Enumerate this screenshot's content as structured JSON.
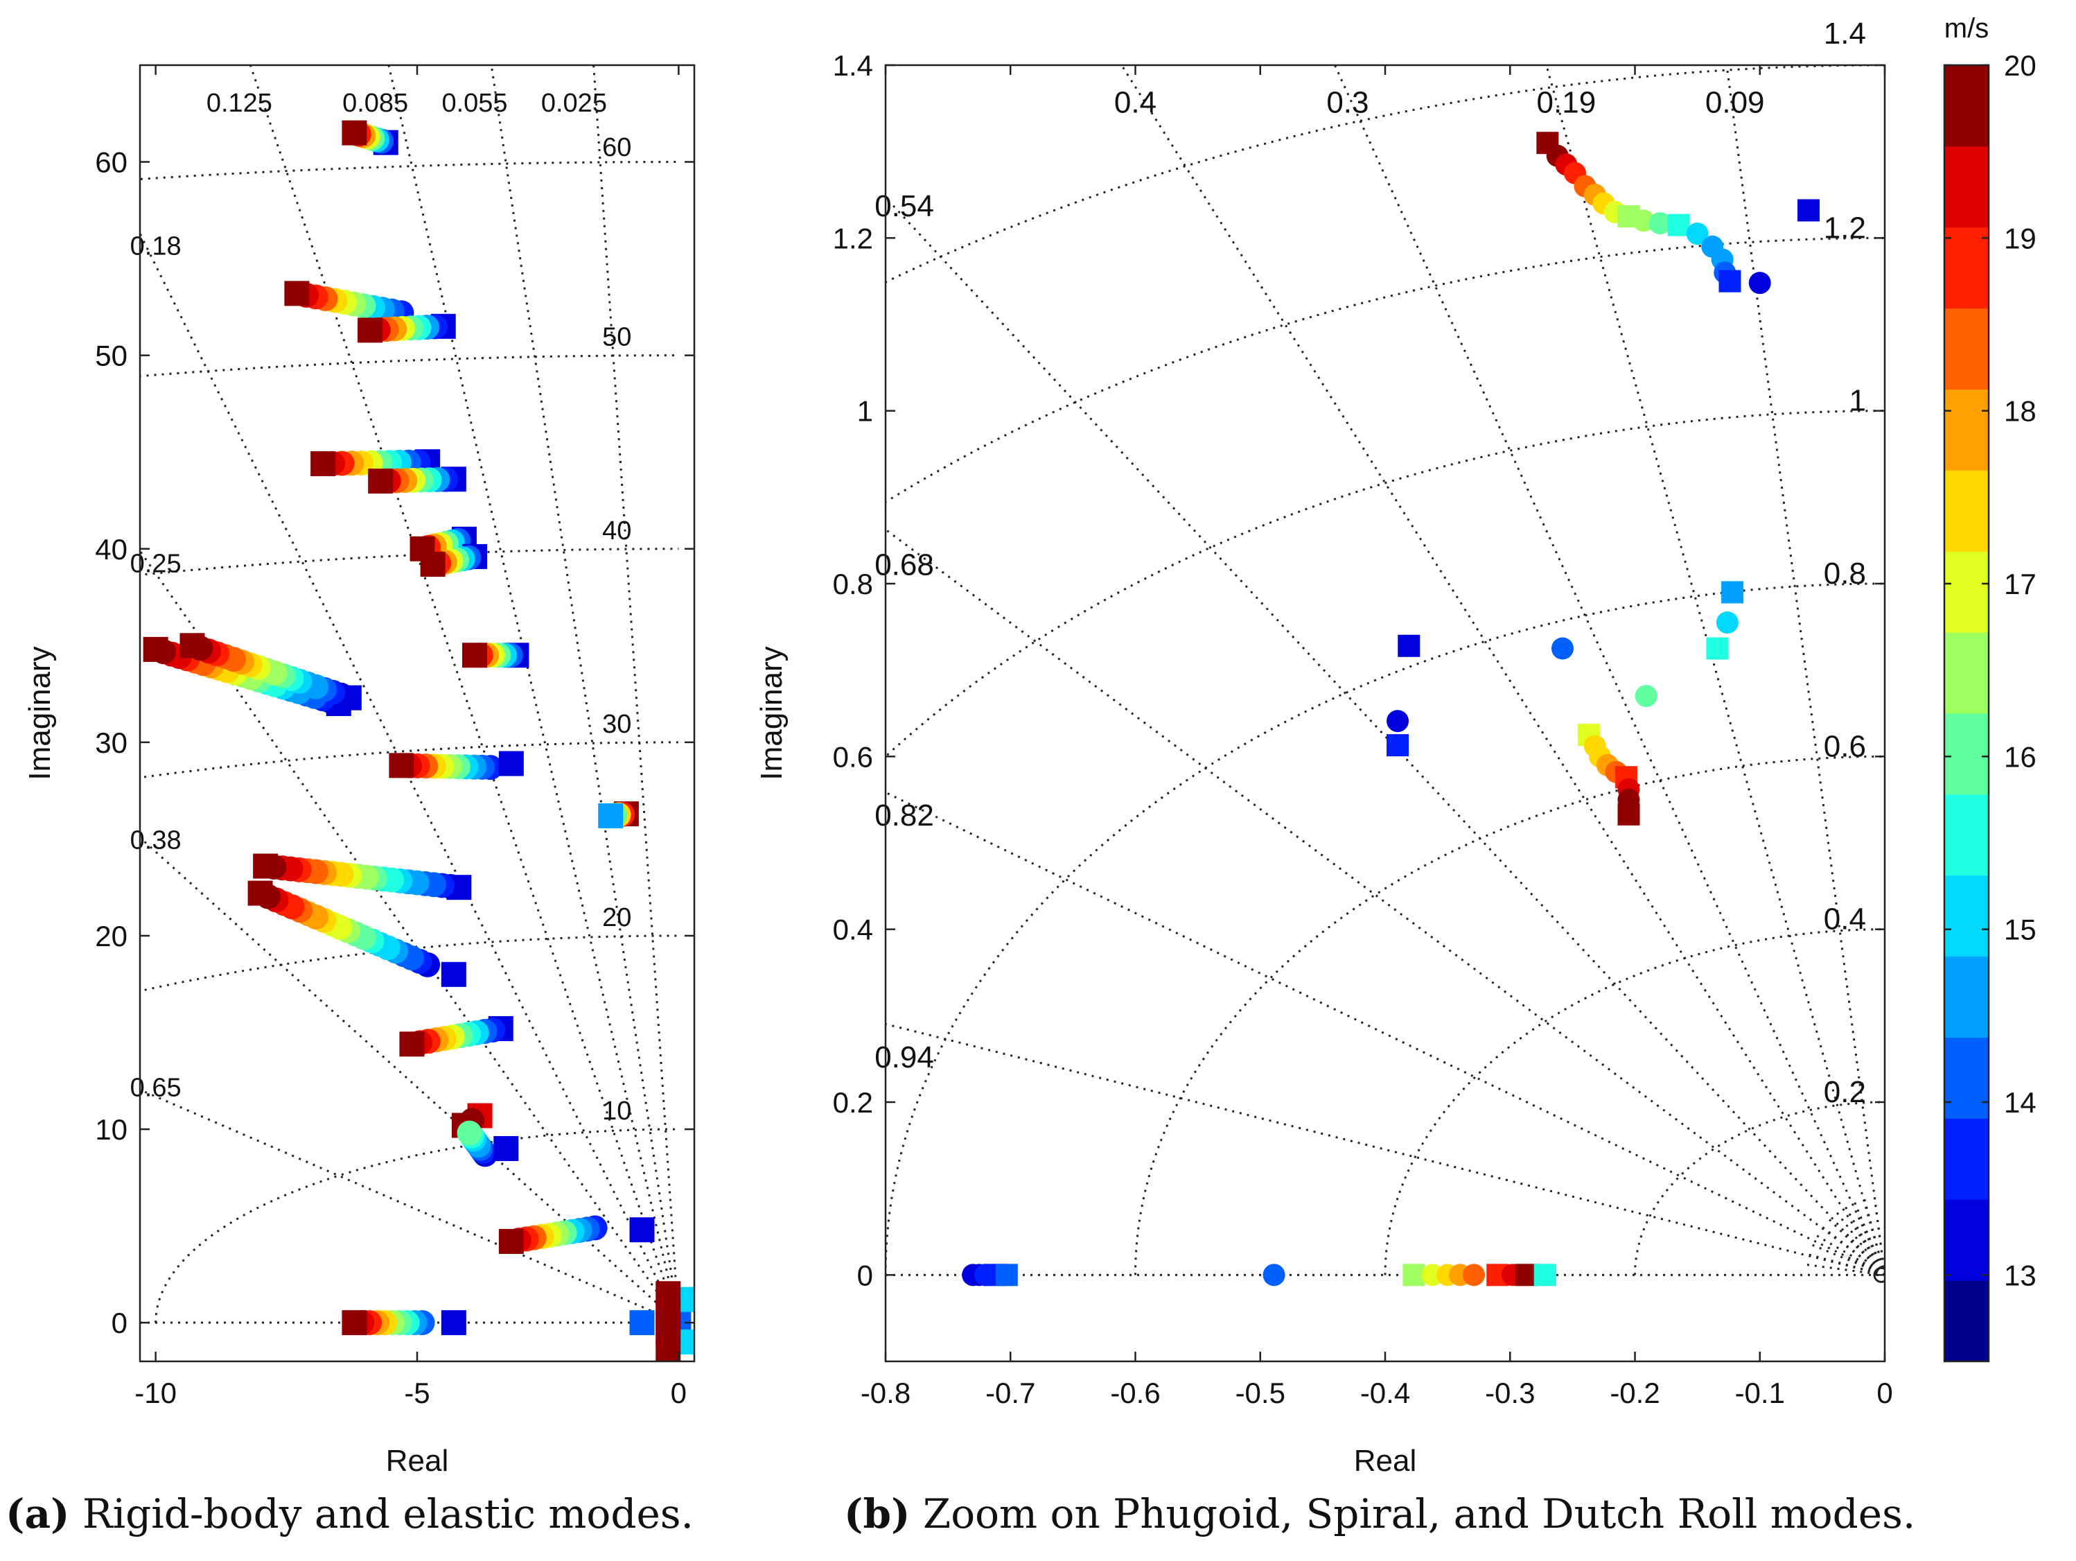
{
  "captions": {
    "a_tag": "(a)",
    "a_text": "Rigid-body and elastic modes.",
    "b_tag": "(b)",
    "b_text": "Zoom on Phugoid, Spiral, and Dutch Roll modes."
  },
  "colorbar": {
    "unit": "m/s",
    "min": 12.5,
    "max": 20,
    "ticks": [
      13,
      14,
      15,
      16,
      17,
      18,
      19,
      20
    ],
    "colors": [
      "#00008f",
      "#0000df",
      "#0020ff",
      "#0060ff",
      "#00a0ff",
      "#00d8ff",
      "#20ffe0",
      "#60ffa0",
      "#a0ff60",
      "#e0ff20",
      "#ffd800",
      "#ffa000",
      "#ff6000",
      "#ff2000",
      "#df0000",
      "#900000"
    ]
  },
  "chart_data": [
    {
      "panel": "a",
      "type": "scatter",
      "title": "",
      "xlabel": "Real",
      "ylabel": "Imaginary",
      "xlim": [
        -10.3,
        0.3
      ],
      "ylim": [
        -2,
        65
      ],
      "xticks": [
        -10,
        -5,
        0
      ],
      "yticks": [
        0,
        10,
        20,
        30,
        40,
        50,
        60
      ],
      "damping_lines": [
        0.025,
        0.055,
        0.085,
        0.125,
        0.18,
        0.25,
        0.38,
        0.65
      ],
      "damping_labels": [
        {
          "zeta": 0.125,
          "text": "0.125",
          "at": [
            -8.4,
            62.6
          ]
        },
        {
          "zeta": 0.085,
          "text": "0.085",
          "at": [
            -5.8,
            62.6
          ]
        },
        {
          "zeta": 0.055,
          "text": "0.055",
          "at": [
            -3.9,
            62.6
          ]
        },
        {
          "zeta": 0.025,
          "text": "0.025",
          "at": [
            -2.0,
            62.6
          ]
        },
        {
          "zeta": 0.18,
          "text": "0.18",
          "at": [
            -10.0,
            55.2
          ]
        },
        {
          "zeta": 0.25,
          "text": "0.25",
          "at": [
            -10.0,
            38.8
          ]
        },
        {
          "zeta": 0.38,
          "text": "0.38",
          "at": [
            -10.0,
            24.5
          ]
        },
        {
          "zeta": 0.65,
          "text": "0.65",
          "at": [
            -10.0,
            11.7
          ]
        }
      ],
      "frequency_arcs": [
        10,
        20,
        30,
        40,
        50,
        60
      ],
      "frequency_labels": [
        {
          "text": "60",
          "at": [
            -0.9,
            60.3
          ]
        },
        {
          "text": "50",
          "at": [
            -0.9,
            50.5
          ]
        },
        {
          "text": "40",
          "at": [
            -0.9,
            40.5
          ]
        },
        {
          "text": "30",
          "at": [
            -0.9,
            30.5
          ]
        },
        {
          "text": "20",
          "at": [
            -0.9,
            20.5
          ]
        },
        {
          "text": "10",
          "at": [
            -0.9,
            10.5
          ]
        }
      ],
      "tracks": [
        {
          "start": [
            -6.2,
            61.5
          ],
          "end": [
            -5.6,
            61.0
          ],
          "n": 8,
          "s0": 20,
          "s1": 13,
          "lead": "square",
          "end_marker": "square"
        },
        {
          "start": [
            -7.3,
            53.2
          ],
          "end": [
            -5.3,
            52.2
          ],
          "n": 12,
          "s0": 20,
          "s1": 13.5,
          "lead": "square",
          "end_marker": "circle"
        },
        {
          "start": [
            -5.9,
            51.3
          ],
          "end": [
            -4.5,
            51.5
          ],
          "n": 10,
          "s0": 20,
          "s1": 13,
          "lead": "square",
          "end_marker": "square"
        },
        {
          "start": [
            -6.8,
            44.4
          ],
          "end": [
            -4.8,
            44.5
          ],
          "n": 12,
          "s0": 20,
          "s1": 13,
          "lead": "square",
          "end_marker": "square"
        },
        {
          "start": [
            -5.7,
            43.5
          ],
          "end": [
            -4.3,
            43.6
          ],
          "n": 10,
          "s0": 20,
          "s1": 13,
          "lead": "square",
          "end_marker": "square"
        },
        {
          "start": [
            -4.9,
            40.0
          ],
          "end": [
            -4.1,
            40.5
          ],
          "n": 8,
          "s0": 20,
          "s1": 13,
          "lead": "square",
          "end_marker": "square"
        },
        {
          "start": [
            -4.7,
            39.2
          ],
          "end": [
            -3.9,
            39.6
          ],
          "n": 8,
          "s0": 20,
          "s1": 13,
          "lead": "square",
          "end_marker": "square"
        },
        {
          "start": [
            -10.0,
            34.8
          ],
          "end": [
            -6.5,
            32.0
          ],
          "n": 24,
          "s0": 20,
          "s1": 13,
          "lead": "square",
          "end_marker": "square"
        },
        {
          "start": [
            -9.3,
            35.0
          ],
          "end": [
            -6.3,
            32.3
          ],
          "n": 20,
          "s0": 20,
          "s1": 13,
          "lead": "square",
          "end_marker": "square"
        },
        {
          "start": [
            -3.9,
            34.5
          ],
          "end": [
            -3.1,
            34.5
          ],
          "n": 8,
          "s0": 20,
          "s1": 13,
          "lead": "square",
          "end_marker": "square"
        },
        {
          "start": [
            -5.3,
            28.8
          ],
          "end": [
            -3.6,
            28.7
          ],
          "n": 12,
          "s0": 20,
          "s1": 13.5,
          "lead": "square",
          "end_marker": "circle"
        },
        {
          "start": [
            -7.9,
            23.6
          ],
          "end": [
            -4.2,
            22.5
          ],
          "n": 24,
          "s0": 20,
          "s1": 13,
          "lead": "square",
          "end_marker": "square"
        },
        {
          "start": [
            -8.0,
            22.2
          ],
          "end": [
            -4.8,
            18.5
          ],
          "n": 22,
          "s0": 20,
          "s1": 13.3,
          "lead": "square",
          "end_marker": "circle"
        },
        {
          "start": [
            -5.1,
            14.4
          ],
          "end": [
            -3.4,
            15.2
          ],
          "n": 12,
          "s0": 20,
          "s1": 13,
          "lead": "square",
          "end_marker": "square"
        },
        {
          "start": [
            -3.2,
            4.2
          ],
          "end": [
            -1.6,
            4.9
          ],
          "n": 12,
          "s0": 20,
          "s1": 13.5,
          "lead": "square",
          "end_marker": "circle"
        },
        {
          "start": [
            -6.2,
            0.0
          ],
          "end": [
            -4.9,
            0.0
          ],
          "n": 10,
          "s0": 20,
          "s1": 14,
          "lead": "square",
          "end_marker": "circle"
        },
        {
          "start": [
            -1.3,
            26.2
          ],
          "end": [
            -1.0,
            26.3
          ],
          "n": 5,
          "s0": 14.5,
          "s1": 20,
          "lead": "square",
          "end_marker": "square"
        },
        {
          "start": [
            -4.1,
            10.2
          ],
          "end": [
            -3.8,
            10.7
          ],
          "n": 3,
          "s0": 20,
          "s1": 19.5,
          "lead": "square",
          "end_marker": "square"
        },
        {
          "start": [
            -4.0,
            9.8
          ],
          "end": [
            -3.7,
            8.7
          ],
          "n": 8,
          "s0": 16,
          "s1": 13.3,
          "lead": "circle",
          "end_marker": "circle"
        }
      ],
      "singles": [
        {
          "x": -4.3,
          "y": 18.0,
          "s": 13,
          "m": "square"
        },
        {
          "x": -4.3,
          "y": 0.0,
          "s": 13,
          "m": "square"
        },
        {
          "x": -3.2,
          "y": 28.9,
          "s": 13,
          "m": "square"
        },
        {
          "x": -3.3,
          "y": 9.0,
          "s": 13,
          "m": "square"
        },
        {
          "x": -0.7,
          "y": 4.8,
          "s": 13,
          "m": "square"
        },
        {
          "x": -0.7,
          "y": 0.0,
          "s": 14,
          "m": "square"
        },
        {
          "x": 0.0,
          "y": 0.0,
          "s": 14,
          "m": "square"
        },
        {
          "x": 0.1,
          "y": 1.2,
          "s": 15,
          "m": "square"
        },
        {
          "x": 0.1,
          "y": -1.0,
          "s": 15,
          "m": "square"
        },
        {
          "x": -0.2,
          "y": 1.5,
          "s": 20,
          "m": "square"
        },
        {
          "x": -0.2,
          "y": 0.5,
          "s": 20,
          "m": "square"
        },
        {
          "x": -0.2,
          "y": -0.5,
          "s": 20,
          "m": "square"
        },
        {
          "x": -0.2,
          "y": -1.5,
          "s": 20,
          "m": "square"
        },
        {
          "x": -0.2,
          "y": 0.0,
          "s": 20,
          "m": "square"
        }
      ]
    },
    {
      "panel": "b",
      "type": "scatter",
      "title": "",
      "xlabel": "Real",
      "ylabel": "Imaginary",
      "xlim": [
        -0.8,
        0
      ],
      "ylim": [
        -0.1,
        1.4
      ],
      "xticks": [
        -0.8,
        -0.7,
        -0.6,
        -0.5,
        -0.4,
        -0.3,
        -0.2,
        -0.1,
        0
      ],
      "yticks": [
        0,
        0.2,
        0.4,
        0.6,
        0.8,
        1,
        1.2,
        1.4
      ],
      "damping_lines": [
        0.09,
        0.19,
        0.3,
        0.4,
        0.54,
        0.68,
        0.82,
        0.94
      ],
      "damping_labels": [
        {
          "zeta": 0.4,
          "text": "0.4",
          "at": [
            -0.6,
            1.345
          ]
        },
        {
          "zeta": 0.3,
          "text": "0.3",
          "at": [
            -0.43,
            1.345
          ]
        },
        {
          "zeta": 0.19,
          "text": "0.19",
          "at": [
            -0.255,
            1.345
          ]
        },
        {
          "zeta": 0.09,
          "text": "0.09",
          "at": [
            -0.12,
            1.345
          ]
        },
        {
          "zeta": 0.54,
          "text": "0.54",
          "at": [
            -0.785,
            1.225
          ]
        },
        {
          "zeta": 0.68,
          "text": "0.68",
          "at": [
            -0.785,
            0.81
          ]
        },
        {
          "zeta": 0.82,
          "text": "0.82",
          "at": [
            -0.785,
            0.52
          ]
        },
        {
          "zeta": 0.94,
          "text": "0.94",
          "at": [
            -0.785,
            0.24
          ]
        }
      ],
      "frequency_arcs": [
        0.2,
        0.4,
        0.6,
        0.8,
        1,
        1.2,
        1.4
      ],
      "frequency_labels": [
        {
          "text": "1.4",
          "at": [
            -0.015,
            1.425
          ]
        },
        {
          "text": "1.2",
          "at": [
            -0.015,
            1.2
          ]
        },
        {
          "text": "1",
          "at": [
            -0.015,
            1.0
          ]
        },
        {
          "text": "0.8",
          "at": [
            -0.015,
            0.8
          ]
        },
        {
          "text": "0.6",
          "at": [
            -0.015,
            0.6
          ]
        },
        {
          "text": "0.4",
          "at": [
            -0.015,
            0.4
          ]
        },
        {
          "text": "0.2",
          "at": [
            -0.015,
            0.2
          ]
        }
      ],
      "points": [
        {
          "x": -0.27,
          "y": 1.31,
          "s": 20,
          "m": "square"
        },
        {
          "x": -0.262,
          "y": 1.295,
          "s": 19.8,
          "m": "circle"
        },
        {
          "x": -0.255,
          "y": 1.285,
          "s": 19.5,
          "m": "circle"
        },
        {
          "x": -0.248,
          "y": 1.275,
          "s": 19,
          "m": "circle"
        },
        {
          "x": -0.24,
          "y": 1.26,
          "s": 18.5,
          "m": "circle"
        },
        {
          "x": -0.232,
          "y": 1.25,
          "s": 18,
          "m": "circle"
        },
        {
          "x": -0.225,
          "y": 1.24,
          "s": 17.5,
          "m": "circle"
        },
        {
          "x": -0.216,
          "y": 1.23,
          "s": 17,
          "m": "circle"
        },
        {
          "x": -0.205,
          "y": 1.225,
          "s": 16.7,
          "m": "square"
        },
        {
          "x": -0.193,
          "y": 1.22,
          "s": 16.3,
          "m": "circle"
        },
        {
          "x": -0.18,
          "y": 1.217,
          "s": 16,
          "m": "circle"
        },
        {
          "x": -0.165,
          "y": 1.215,
          "s": 15.7,
          "m": "square"
        },
        {
          "x": -0.15,
          "y": 1.205,
          "s": 15.3,
          "m": "circle"
        },
        {
          "x": -0.138,
          "y": 1.19,
          "s": 14.8,
          "m": "circle"
        },
        {
          "x": -0.13,
          "y": 1.175,
          "s": 14.5,
          "m": "circle"
        },
        {
          "x": -0.128,
          "y": 1.16,
          "s": 14,
          "m": "circle"
        },
        {
          "x": -0.124,
          "y": 1.15,
          "s": 13.7,
          "m": "square"
        },
        {
          "x": -0.1,
          "y": 1.148,
          "s": 13,
          "m": "circle"
        },
        {
          "x": -0.061,
          "y": 1.232,
          "s": 13,
          "m": "square"
        },
        {
          "x": -0.122,
          "y": 0.79,
          "s": 14.7,
          "m": "square"
        },
        {
          "x": -0.126,
          "y": 0.755,
          "s": 15,
          "m": "circle"
        },
        {
          "x": -0.134,
          "y": 0.725,
          "s": 15.5,
          "m": "square"
        },
        {
          "x": -0.258,
          "y": 0.725,
          "s": 14,
          "m": "circle"
        },
        {
          "x": -0.191,
          "y": 0.67,
          "s": 16,
          "m": "circle"
        },
        {
          "x": -0.381,
          "y": 0.728,
          "s": 13,
          "m": "square"
        },
        {
          "x": -0.39,
          "y": 0.641,
          "s": 13,
          "m": "circle"
        },
        {
          "x": -0.39,
          "y": 0.613,
          "s": 13.8,
          "m": "square"
        },
        {
          "x": -0.237,
          "y": 0.625,
          "s": 16.8,
          "m": "square"
        },
        {
          "x": -0.232,
          "y": 0.612,
          "s": 17.2,
          "m": "circle"
        },
        {
          "x": -0.228,
          "y": 0.6,
          "s": 17.6,
          "m": "circle"
        },
        {
          "x": -0.222,
          "y": 0.59,
          "s": 18,
          "m": "circle"
        },
        {
          "x": -0.215,
          "y": 0.582,
          "s": 18.4,
          "m": "circle"
        },
        {
          "x": -0.207,
          "y": 0.576,
          "s": 19,
          "m": "square"
        },
        {
          "x": -0.205,
          "y": 0.562,
          "s": 19.4,
          "m": "circle"
        },
        {
          "x": -0.205,
          "y": 0.55,
          "s": 19.7,
          "m": "circle"
        },
        {
          "x": -0.205,
          "y": 0.533,
          "s": 20,
          "m": "square"
        },
        {
          "x": -0.73,
          "y": 0,
          "s": 13,
          "m": "circle"
        },
        {
          "x": -0.725,
          "y": 0,
          "s": 13.3,
          "m": "circle"
        },
        {
          "x": -0.72,
          "y": 0,
          "s": 13.6,
          "m": "circle"
        },
        {
          "x": -0.713,
          "y": 0,
          "s": 13.9,
          "m": "square"
        },
        {
          "x": -0.703,
          "y": 0,
          "s": 14.2,
          "m": "square"
        },
        {
          "x": -0.489,
          "y": 0,
          "s": 14,
          "m": "circle"
        },
        {
          "x": -0.377,
          "y": 0,
          "s": 16.7,
          "m": "square"
        },
        {
          "x": -0.362,
          "y": 0,
          "s": 17,
          "m": "circle"
        },
        {
          "x": -0.35,
          "y": 0,
          "s": 17.5,
          "m": "circle"
        },
        {
          "x": -0.34,
          "y": 0,
          "s": 17.8,
          "m": "circle"
        },
        {
          "x": -0.329,
          "y": 0,
          "s": 18.3,
          "m": "circle"
        },
        {
          "x": -0.31,
          "y": 0,
          "s": 19,
          "m": "square"
        },
        {
          "x": -0.298,
          "y": 0,
          "s": 19.5,
          "m": "circle"
        },
        {
          "x": -0.287,
          "y": 0,
          "s": 20,
          "m": "square"
        },
        {
          "x": -0.278,
          "y": 0,
          "s": 20,
          "m": "circle"
        },
        {
          "x": -0.272,
          "y": 0,
          "s": 15.5,
          "m": "square"
        }
      ]
    }
  ]
}
